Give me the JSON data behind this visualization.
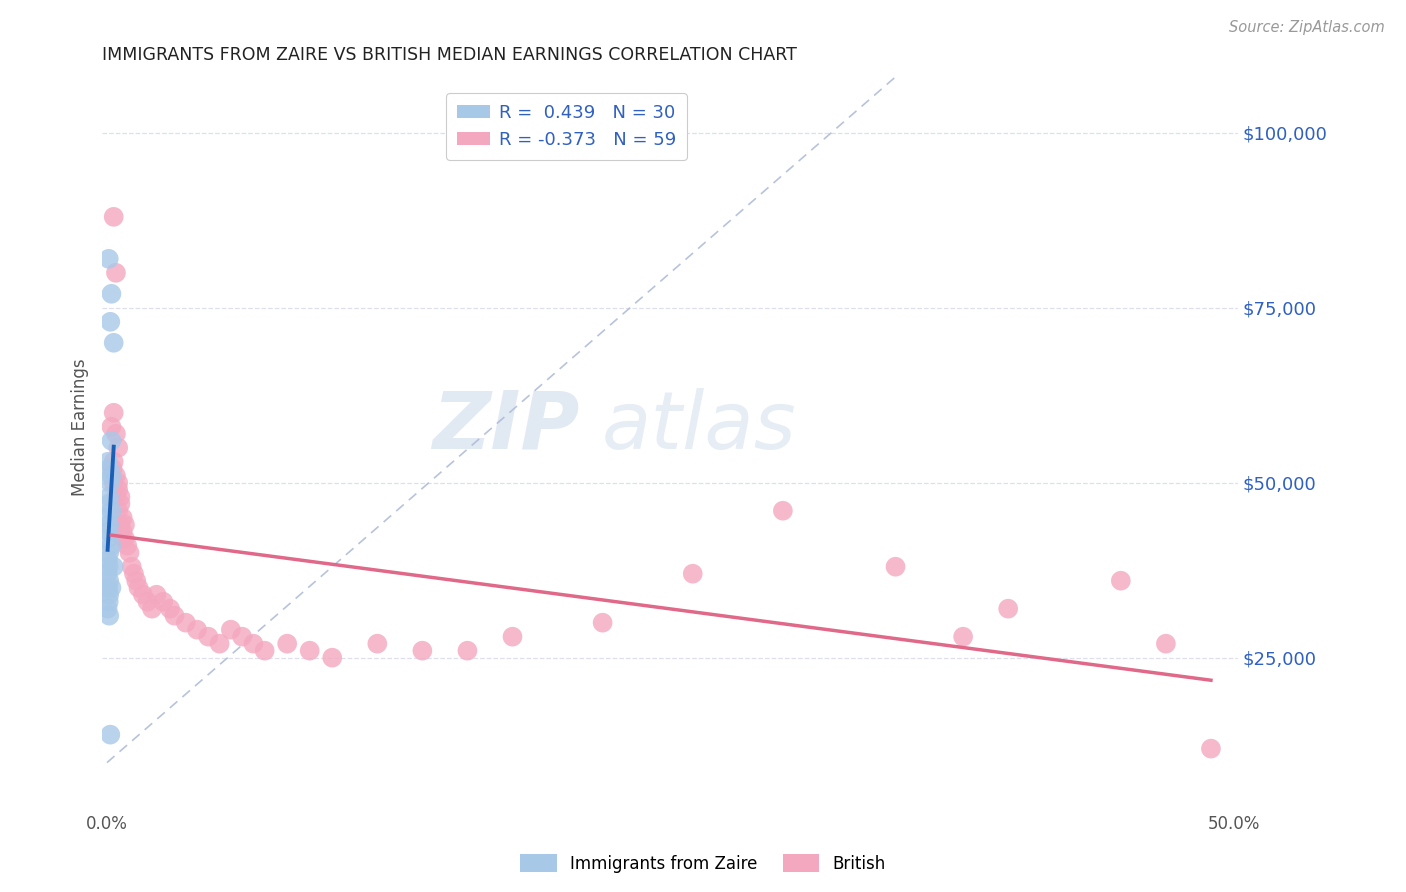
{
  "title": "IMMIGRANTS FROM ZAIRE VS BRITISH MEDIAN EARNINGS CORRELATION CHART",
  "source": "Source: ZipAtlas.com",
  "ylabel": "Median Earnings",
  "y_tick_labels": [
    "$25,000",
    "$50,000",
    "$75,000",
    "$100,000"
  ],
  "y_tick_values": [
    25000,
    50000,
    75000,
    100000
  ],
  "ylim": [
    8000,
    108000
  ],
  "xlim": [
    -0.002,
    0.502
  ],
  "legend_blue_r": "R =  0.439",
  "legend_blue_n": "N = 30",
  "legend_pink_r": "R = -0.373",
  "legend_pink_n": "N = 59",
  "blue_color": "#a8c8e8",
  "pink_color": "#f4a8c0",
  "blue_line_color": "#1a5fb5",
  "pink_line_color": "#e06888",
  "diagonal_color": "#b0bcd8",
  "background_color": "#ffffff",
  "grid_color": "#dde0ec",
  "title_color": "#222222",
  "right_label_color": "#3060c0",
  "watermark_color": "#d0dced",
  "blue_scatter": [
    [
      0.0008,
      82000
    ],
    [
      0.0015,
      73000
    ],
    [
      0.002,
      77000
    ],
    [
      0.003,
      70000
    ],
    [
      0.0005,
      53000
    ],
    [
      0.001,
      52000
    ],
    [
      0.002,
      56000
    ],
    [
      0.0015,
      50000
    ],
    [
      0.001,
      48000
    ],
    [
      0.0008,
      47000
    ],
    [
      0.002,
      51000
    ],
    [
      0.0005,
      45000
    ],
    [
      0.001,
      44000
    ],
    [
      0.0008,
      43000
    ],
    [
      0.002,
      46000
    ],
    [
      0.0003,
      42000
    ],
    [
      0.001,
      40000
    ],
    [
      0.0005,
      39000
    ],
    [
      0.0008,
      38000
    ],
    [
      0.002,
      41000
    ],
    [
      0.0003,
      37000
    ],
    [
      0.001,
      36000
    ],
    [
      0.0005,
      35000
    ],
    [
      0.001,
      34000
    ],
    [
      0.0008,
      33000
    ],
    [
      0.002,
      35000
    ],
    [
      0.003,
      38000
    ],
    [
      0.0003,
      32000
    ],
    [
      0.001,
      31000
    ],
    [
      0.0015,
      14000
    ]
  ],
  "pink_scatter": [
    [
      0.003,
      88000
    ],
    [
      0.004,
      80000
    ],
    [
      0.003,
      60000
    ],
    [
      0.004,
      57000
    ],
    [
      0.005,
      55000
    ],
    [
      0.002,
      58000
    ],
    [
      0.003,
      53000
    ],
    [
      0.004,
      51000
    ],
    [
      0.0025,
      52000
    ],
    [
      0.003,
      50000
    ],
    [
      0.005,
      50000
    ],
    [
      0.004,
      48000
    ],
    [
      0.005,
      49000
    ],
    [
      0.006,
      48000
    ],
    [
      0.006,
      47000
    ],
    [
      0.005,
      46000
    ],
    [
      0.007,
      45000
    ],
    [
      0.006,
      44000
    ],
    [
      0.007,
      43000
    ],
    [
      0.007,
      42000
    ],
    [
      0.008,
      44000
    ],
    [
      0.008,
      42000
    ],
    [
      0.009,
      41000
    ],
    [
      0.01,
      40000
    ],
    [
      0.011,
      38000
    ],
    [
      0.012,
      37000
    ],
    [
      0.013,
      36000
    ],
    [
      0.014,
      35000
    ],
    [
      0.016,
      34000
    ],
    [
      0.018,
      33000
    ],
    [
      0.02,
      32000
    ],
    [
      0.022,
      34000
    ],
    [
      0.025,
      33000
    ],
    [
      0.028,
      32000
    ],
    [
      0.03,
      31000
    ],
    [
      0.035,
      30000
    ],
    [
      0.04,
      29000
    ],
    [
      0.045,
      28000
    ],
    [
      0.05,
      27000
    ],
    [
      0.055,
      29000
    ],
    [
      0.06,
      28000
    ],
    [
      0.065,
      27000
    ],
    [
      0.07,
      26000
    ],
    [
      0.08,
      27000
    ],
    [
      0.09,
      26000
    ],
    [
      0.1,
      25000
    ],
    [
      0.12,
      27000
    ],
    [
      0.14,
      26000
    ],
    [
      0.16,
      26000
    ],
    [
      0.18,
      28000
    ],
    [
      0.22,
      30000
    ],
    [
      0.26,
      37000
    ],
    [
      0.3,
      46000
    ],
    [
      0.35,
      38000
    ],
    [
      0.38,
      28000
    ],
    [
      0.4,
      32000
    ],
    [
      0.45,
      36000
    ],
    [
      0.47,
      27000
    ],
    [
      0.49,
      12000
    ]
  ]
}
